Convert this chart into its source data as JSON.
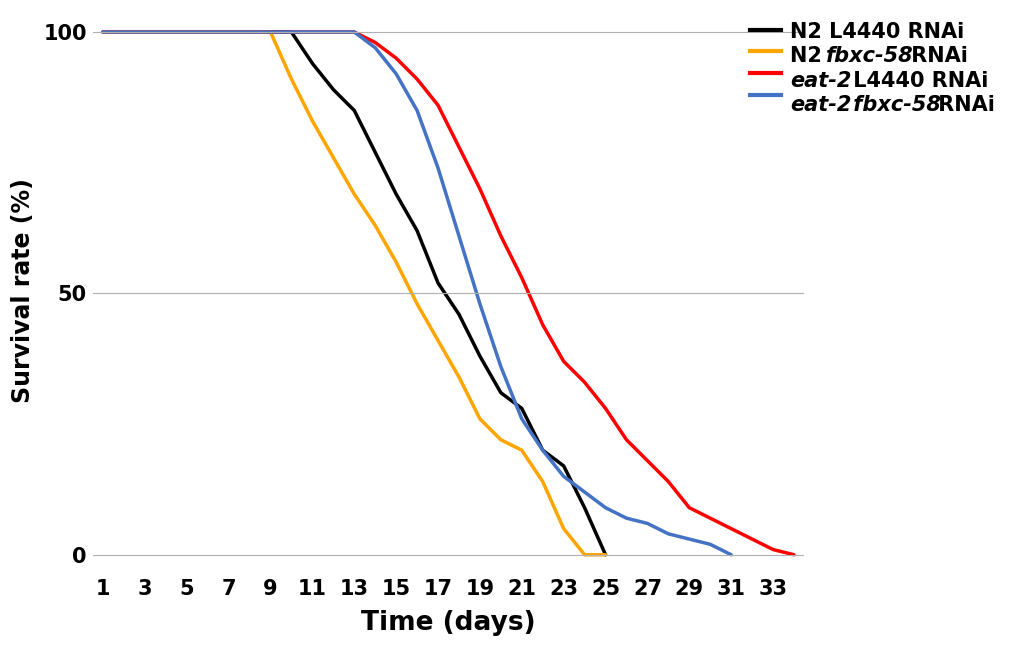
{
  "xlabel": "Time (days)",
  "ylabel": "Survival rate (%)",
  "xlim_left": 0.5,
  "xlim_right": 34.5,
  "ylim_bottom": -3,
  "ylim_top": 104,
  "xticks": [
    1,
    3,
    5,
    7,
    9,
    11,
    13,
    15,
    17,
    19,
    21,
    23,
    25,
    27,
    29,
    31,
    33
  ],
  "yticks": [
    0,
    50,
    100
  ],
  "background": "#ffffff",
  "grid_color": "#b0b0b0",
  "N2_L4440": {
    "color": "#000000",
    "linewidth": 2.5,
    "x": [
      1,
      9,
      10,
      11,
      12,
      13,
      14,
      15,
      16,
      17,
      18,
      19,
      20,
      21,
      22,
      23,
      24,
      25
    ],
    "y": [
      100,
      100,
      100,
      94,
      89,
      85,
      77,
      69,
      62,
      52,
      46,
      38,
      31,
      28,
      20,
      17,
      9,
      0
    ]
  },
  "N2_fbxc58": {
    "color": "#FFA500",
    "linewidth": 2.5,
    "x": [
      1,
      9,
      10,
      11,
      12,
      13,
      14,
      15,
      16,
      17,
      18,
      19,
      20,
      21,
      22,
      23,
      24,
      25
    ],
    "y": [
      100,
      100,
      91,
      83,
      76,
      69,
      63,
      56,
      48,
      41,
      34,
      26,
      22,
      20,
      14,
      5,
      0,
      0
    ]
  },
  "eat2_L4440": {
    "color": "#FF0000",
    "linewidth": 2.5,
    "x": [
      1,
      13,
      14,
      15,
      16,
      17,
      18,
      19,
      20,
      21,
      22,
      23,
      24,
      25,
      26,
      27,
      28,
      29,
      30,
      31,
      32,
      33,
      34
    ],
    "y": [
      100,
      100,
      98,
      95,
      91,
      86,
      78,
      70,
      61,
      53,
      44,
      37,
      33,
      28,
      22,
      18,
      14,
      9,
      7,
      5,
      3,
      1,
      0
    ]
  },
  "eat2_fbxc58": {
    "color": "#4472C4",
    "linewidth": 2.5,
    "x": [
      1,
      13,
      14,
      15,
      16,
      17,
      18,
      19,
      20,
      21,
      22,
      23,
      24,
      25,
      26,
      27,
      28,
      29,
      30,
      31
    ],
    "y": [
      100,
      100,
      97,
      92,
      85,
      74,
      61,
      48,
      36,
      26,
      20,
      15,
      12,
      9,
      7,
      6,
      4,
      3,
      2,
      0
    ]
  },
  "legend_items": [
    {
      "label": "N2 L4440 RNAi",
      "italic_end": 0,
      "color": "#000000"
    },
    {
      "label": "N2 fbxc-58 RNAi",
      "italic_start": 3,
      "italic_end": 10,
      "color": "#FFA500"
    },
    {
      "label": "eat-2 L4440 RNAi",
      "italic_start": 0,
      "italic_end": 5,
      "color": "#FF0000"
    },
    {
      "label": "eat-2 fbxc-58 RNAi",
      "italic_start": 0,
      "italic_end": 14,
      "color": "#4472C4"
    }
  ]
}
